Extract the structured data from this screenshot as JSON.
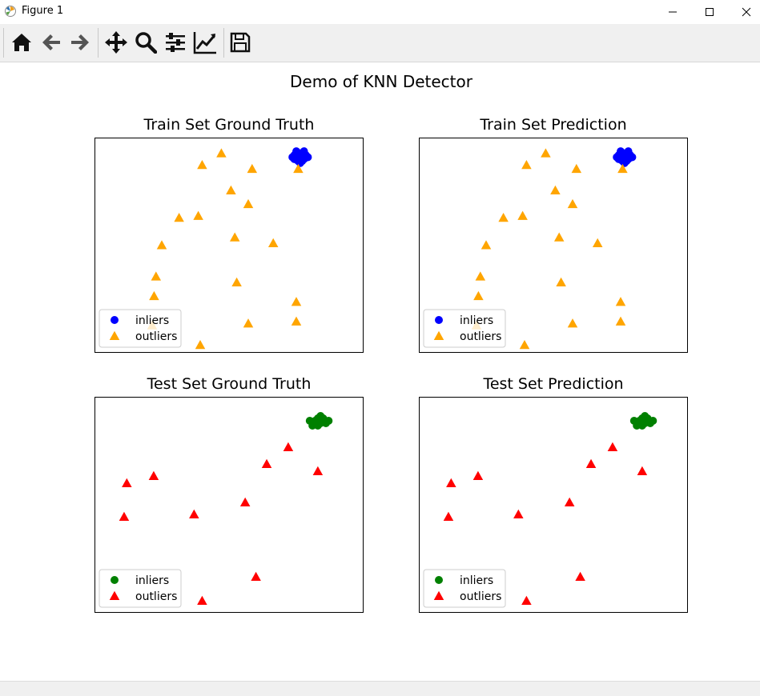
{
  "window": {
    "title": "Figure 1",
    "minimize_icon": "minimize-icon",
    "maximize_icon": "maximize-icon",
    "close_icon": "close-icon"
  },
  "toolbar": {
    "buttons": [
      {
        "name": "home-icon",
        "label": "Home"
      },
      {
        "name": "back-arrow-icon",
        "label": "Back"
      },
      {
        "name": "forward-arrow-icon",
        "label": "Forward"
      },
      {
        "name": "pan-move-icon",
        "label": "Pan"
      },
      {
        "name": "zoom-magnifier-icon",
        "label": "Zoom"
      },
      {
        "name": "subplots-sliders-icon",
        "label": "Subplots"
      },
      {
        "name": "edit-axis-chart-icon",
        "label": "Customize"
      },
      {
        "name": "save-floppy-icon",
        "label": "Save"
      }
    ]
  },
  "figure": {
    "suptitle": "Demo of KNN Detector"
  },
  "colors": {
    "train_inlier": "#0000ff",
    "train_outlier": "#ffa500",
    "test_inlier": "#008000",
    "test_outlier": "#ff0000"
  },
  "chart_data": [
    {
      "type": "scatter",
      "title": "Train Set Ground Truth",
      "xlabel": "",
      "ylabel": "",
      "xlim": [
        -6,
        8
      ],
      "ylim": [
        -7,
        4
      ],
      "grid": false,
      "legend": "lower-left",
      "series": [
        {
          "name": "inliers",
          "marker": "circle",
          "color": "#0000ff",
          "points": [
            [
              4.4,
              3.1
            ],
            [
              4.6,
              3.0
            ],
            [
              4.7,
              3.2
            ],
            [
              4.8,
              3.0
            ],
            [
              4.9,
              3.1
            ],
            [
              4.5,
              3.3
            ],
            [
              4.7,
              2.9
            ],
            [
              4.8,
              3.2
            ],
            [
              4.6,
              2.8
            ],
            [
              4.9,
              2.9
            ],
            [
              5.0,
              3.1
            ],
            [
              4.4,
              2.9
            ],
            [
              4.7,
              3.0
            ],
            [
              4.6,
              3.1
            ],
            [
              4.8,
              2.8
            ],
            [
              5.1,
              3.0
            ],
            [
              4.5,
              3.0
            ],
            [
              4.7,
              2.7
            ],
            [
              4.3,
              3.0
            ],
            [
              4.9,
              3.3
            ]
          ]
        },
        {
          "name": "outliers",
          "marker": "triangle",
          "color": "#ffa500",
          "points": [
            [
              0.6,
              3.2
            ],
            [
              -0.4,
              2.6
            ],
            [
              2.2,
              2.4
            ],
            [
              4.6,
              2.4
            ],
            [
              1.1,
              1.3
            ],
            [
              2.0,
              0.6
            ],
            [
              -1.6,
              -0.1
            ],
            [
              -0.6,
              0.0
            ],
            [
              1.3,
              -1.1
            ],
            [
              3.3,
              -1.4
            ],
            [
              -2.5,
              -1.5
            ],
            [
              -2.8,
              -3.1
            ],
            [
              1.4,
              -3.4
            ],
            [
              -2.9,
              -4.1
            ],
            [
              4.5,
              -4.4
            ],
            [
              4.5,
              -5.4
            ],
            [
              2.0,
              -5.5
            ],
            [
              -3.0,
              -5.6
            ],
            [
              -0.5,
              -6.6
            ]
          ]
        }
      ]
    },
    {
      "type": "scatter",
      "title": "Train Set Prediction",
      "xlabel": "",
      "ylabel": "",
      "xlim": [
        -6,
        8
      ],
      "ylim": [
        -7,
        4
      ],
      "grid": false,
      "legend": "lower-left",
      "series": [
        {
          "name": "inliers",
          "marker": "circle",
          "color": "#0000ff",
          "points": [
            [
              4.4,
              3.1
            ],
            [
              4.6,
              3.0
            ],
            [
              4.7,
              3.2
            ],
            [
              4.8,
              3.0
            ],
            [
              4.9,
              3.1
            ],
            [
              4.5,
              3.3
            ],
            [
              4.7,
              2.9
            ],
            [
              4.8,
              3.2
            ],
            [
              4.6,
              2.8
            ],
            [
              4.9,
              2.9
            ],
            [
              5.0,
              3.1
            ],
            [
              4.4,
              2.9
            ],
            [
              4.7,
              3.0
            ],
            [
              4.6,
              3.1
            ],
            [
              4.8,
              2.8
            ],
            [
              5.1,
              3.0
            ],
            [
              4.5,
              3.0
            ],
            [
              4.7,
              2.7
            ],
            [
              4.3,
              3.0
            ],
            [
              4.9,
              3.3
            ]
          ]
        },
        {
          "name": "outliers",
          "marker": "triangle",
          "color": "#ffa500",
          "points": [
            [
              0.6,
              3.2
            ],
            [
              -0.4,
              2.6
            ],
            [
              2.2,
              2.4
            ],
            [
              4.6,
              2.4
            ],
            [
              1.1,
              1.3
            ],
            [
              2.0,
              0.6
            ],
            [
              -1.6,
              -0.1
            ],
            [
              -0.6,
              0.0
            ],
            [
              1.3,
              -1.1
            ],
            [
              3.3,
              -1.4
            ],
            [
              -2.5,
              -1.5
            ],
            [
              -2.8,
              -3.1
            ],
            [
              1.4,
              -3.4
            ],
            [
              -2.9,
              -4.1
            ],
            [
              4.5,
              -4.4
            ],
            [
              4.5,
              -5.4
            ],
            [
              2.0,
              -5.5
            ],
            [
              -3.0,
              -5.6
            ],
            [
              -0.5,
              -6.6
            ]
          ]
        }
      ]
    },
    {
      "type": "scatter",
      "title": "Test Set Ground Truth",
      "xlabel": "",
      "ylabel": "",
      "xlim": [
        -4,
        6
      ],
      "ylim": [
        -6,
        3
      ],
      "grid": false,
      "legend": "lower-left",
      "series": [
        {
          "name": "inliers",
          "marker": "circle",
          "color": "#008000",
          "points": [
            [
              4.2,
              2.0
            ],
            [
              4.4,
              1.9
            ],
            [
              4.3,
              2.1
            ],
            [
              4.5,
              2.0
            ],
            [
              4.1,
              1.8
            ],
            [
              4.4,
              2.2
            ],
            [
              4.6,
              1.9
            ],
            [
              4.3,
              1.8
            ],
            [
              4.0,
              2.0
            ],
            [
              4.5,
              2.1
            ],
            [
              4.2,
              1.9
            ],
            [
              4.7,
              2.0
            ]
          ]
        },
        {
          "name": "outliers",
          "marker": "triangle",
          "color": "#ff0000",
          "points": [
            [
              3.2,
              0.9
            ],
            [
              2.4,
              0.2
            ],
            [
              4.3,
              -0.1
            ],
            [
              -1.8,
              -0.3
            ],
            [
              -2.8,
              -0.6
            ],
            [
              1.6,
              -1.4
            ],
            [
              -0.3,
              -1.9
            ],
            [
              -2.9,
              -2.0
            ],
            [
              2.0,
              -4.5
            ],
            [
              0.0,
              -5.5
            ]
          ]
        }
      ]
    },
    {
      "type": "scatter",
      "title": "Test Set Prediction",
      "xlabel": "",
      "ylabel": "",
      "xlim": [
        -4,
        6
      ],
      "ylim": [
        -6,
        3
      ],
      "grid": false,
      "legend": "lower-left",
      "series": [
        {
          "name": "inliers",
          "marker": "circle",
          "color": "#008000",
          "points": [
            [
              4.2,
              2.0
            ],
            [
              4.4,
              1.9
            ],
            [
              4.3,
              2.1
            ],
            [
              4.5,
              2.0
            ],
            [
              4.1,
              1.8
            ],
            [
              4.4,
              2.2
            ],
            [
              4.6,
              1.9
            ],
            [
              4.3,
              1.8
            ],
            [
              4.0,
              2.0
            ],
            [
              4.5,
              2.1
            ],
            [
              4.2,
              1.9
            ],
            [
              4.7,
              2.0
            ]
          ]
        },
        {
          "name": "outliers",
          "marker": "triangle",
          "color": "#ff0000",
          "points": [
            [
              3.2,
              0.9
            ],
            [
              2.4,
              0.2
            ],
            [
              4.3,
              -0.1
            ],
            [
              -1.8,
              -0.3
            ],
            [
              -2.8,
              -0.6
            ],
            [
              1.6,
              -1.4
            ],
            [
              -0.3,
              -1.9
            ],
            [
              -2.9,
              -2.0
            ],
            [
              2.0,
              -4.5
            ],
            [
              0.0,
              -5.5
            ]
          ]
        }
      ]
    }
  ]
}
